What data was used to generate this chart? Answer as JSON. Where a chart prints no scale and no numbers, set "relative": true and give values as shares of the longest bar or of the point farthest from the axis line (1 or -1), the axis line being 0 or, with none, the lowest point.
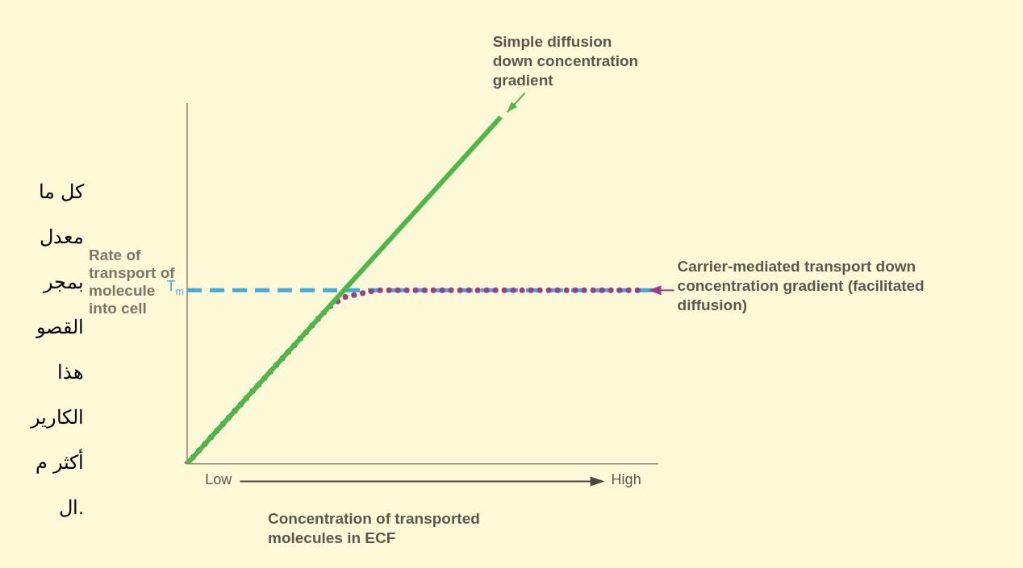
{
  "chart_data": {
    "type": "line",
    "relative": true,
    "xlabel": "Concentration of transported molecules in ECF",
    "ylabel": "Rate of transport of molecule into cell",
    "categories": [
      null,
      null,
      "Low",
      null,
      null,
      null,
      null,
      null,
      null,
      null,
      null,
      null,
      null,
      null,
      null,
      null,
      null,
      null,
      null,
      null,
      null,
      null,
      null,
      null,
      null,
      null,
      null,
      null,
      "High",
      null,
      null
    ],
    "series": [
      {
        "name": "Simple diffusion down concentration gradient",
        "color": "#4cb848",
        "line_style": "solid",
        "values": [
          0,
          0.05,
          0.1,
          0.15,
          0.2,
          0.25,
          0.3,
          0.35,
          0.4,
          0.45,
          0.5,
          0.55,
          0.6,
          0.65,
          0.7,
          0.75,
          0.8,
          0.85,
          0.9,
          0.95,
          1,
          null,
          null,
          null,
          null,
          null,
          null,
          null,
          null,
          null,
          null
        ]
      },
      {
        "name": "Carrier-mediated transport down concentration gradient (facilitated diffusion)",
        "color": "#9b3d8a",
        "line_style": "dotted",
        "values": [
          0,
          0.05,
          0.1,
          0.15,
          0.2,
          0.25,
          0.3,
          0.35,
          0.4,
          0.45,
          0.48,
          0.49,
          0.5,
          0.5,
          0.5,
          0.5,
          0.5,
          0.5,
          0.5,
          0.5,
          0.5,
          0.5,
          0.5,
          0.5,
          0.5,
          0.5,
          0.5,
          0.5,
          0.5,
          0.5,
          null
        ]
      }
    ],
    "ref_lines": [
      {
        "axis": "y",
        "value": 0.5,
        "label": "T$_{m}$",
        "color": "#3fa9e0",
        "line_style": "dashed"
      }
    ],
    "annotations": [
      "كل ما",
      "معدل",
      "بمجر",
      "القصو",
      "هذا",
      "الكارير",
      "أكثر م",
      ".ال"
    ]
  }
}
